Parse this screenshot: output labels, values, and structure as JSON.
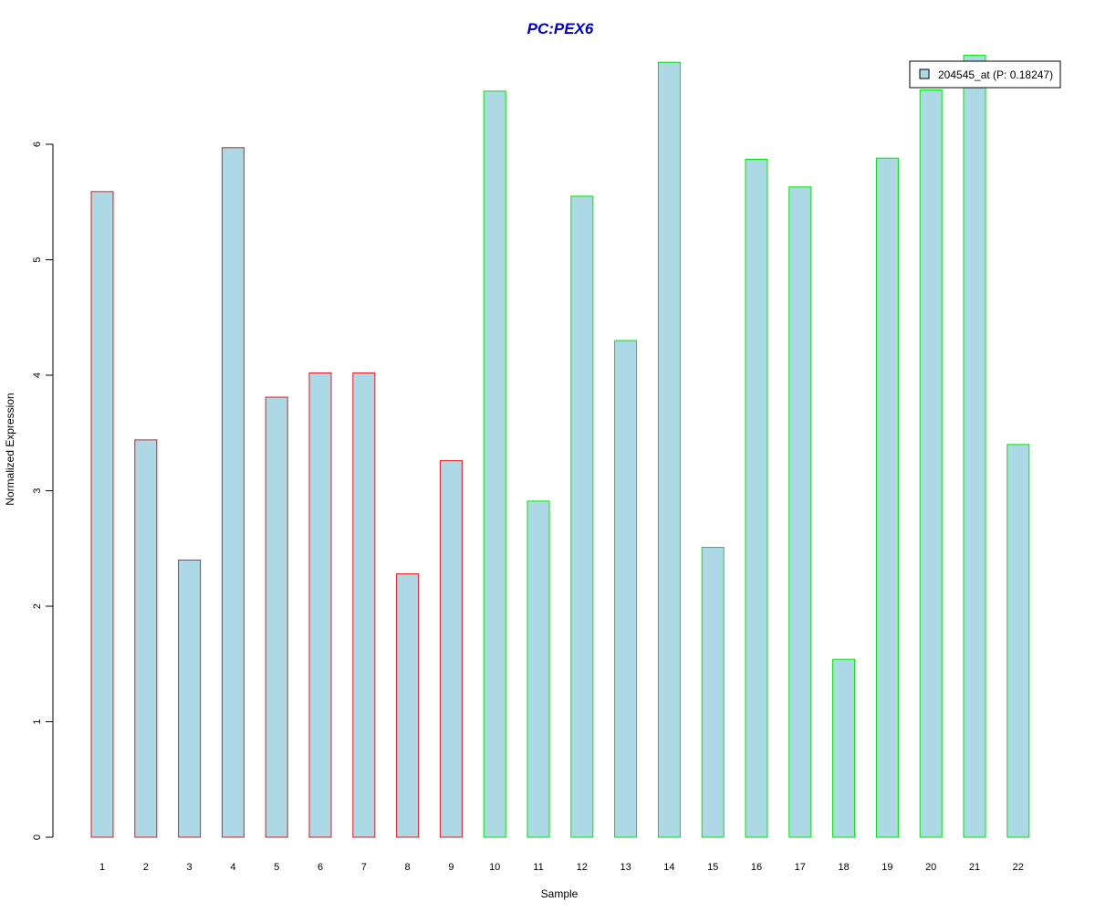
{
  "chart_data": {
    "type": "bar",
    "title": "PC:PEX6",
    "xlabel": "Sample",
    "ylabel": "Normalized Expression",
    "categories": [
      "1",
      "2",
      "3",
      "4",
      "5",
      "6",
      "7",
      "8",
      "9",
      "10",
      "11",
      "12",
      "13",
      "14",
      "15",
      "16",
      "17",
      "18",
      "19",
      "20",
      "21",
      "22"
    ],
    "series": [
      {
        "name": "204545_at (P: 0.18247)",
        "values": [
          5.59,
          3.44,
          2.4,
          5.97,
          3.81,
          4.02,
          4.02,
          2.28,
          3.26,
          6.46,
          2.91,
          5.55,
          4.3,
          6.71,
          2.51,
          5.87,
          5.63,
          1.54,
          5.88,
          6.47,
          6.77,
          3.4
        ]
      }
    ],
    "groups": [
      {
        "samples": [
          1,
          2,
          3,
          4,
          5,
          6,
          7,
          8,
          9
        ],
        "border_color": "#e41a1c"
      },
      {
        "samples": [
          10,
          11,
          12,
          13,
          14,
          15,
          16,
          17,
          18,
          19,
          20,
          21,
          22
        ],
        "border_color": "#00e600"
      }
    ],
    "yticks": [
      0,
      1,
      2,
      3,
      4,
      5,
      6
    ],
    "ylim": [
      0,
      6.77
    ],
    "grid": false,
    "legend_position": "top-right",
    "colors": {
      "bar_fill": "#add8e6",
      "title": "#0000cc",
      "axis": "#000000"
    }
  }
}
